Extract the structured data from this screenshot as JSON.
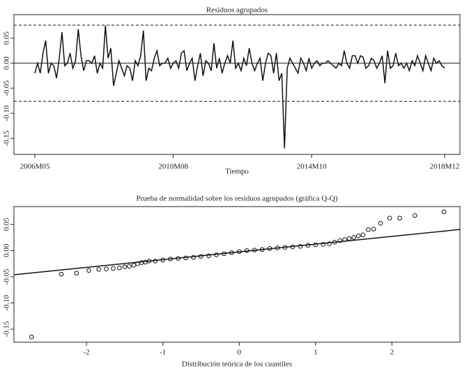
{
  "chart_data": [
    {
      "type": "line",
      "title": "Residuos agrupados",
      "x_label": "Tiempo",
      "categories": [
        "2006M05",
        null,
        null,
        null,
        null,
        null,
        null,
        null,
        null,
        null,
        null,
        null,
        null,
        null,
        null,
        null,
        null,
        null,
        null,
        null,
        null,
        null,
        null,
        null,
        null,
        null,
        null,
        null,
        null,
        null,
        null,
        null,
        null,
        null,
        null,
        null,
        null,
        null,
        null,
        null,
        null,
        null,
        null,
        null,
        null,
        null,
        null,
        null,
        null,
        null,
        null,
        "2010M08",
        null,
        null,
        null,
        null,
        null,
        null,
        null,
        null,
        null,
        null,
        null,
        null,
        null,
        null,
        null,
        null,
        null,
        null,
        null,
        null,
        null,
        null,
        null,
        null,
        null,
        null,
        null,
        null,
        null,
        null,
        null,
        null,
        null,
        null,
        null,
        null,
        null,
        null,
        null,
        null,
        null,
        null,
        null,
        null,
        null,
        null,
        null,
        null,
        null,
        null,
        "2014M10",
        null,
        null,
        null,
        null,
        null,
        null,
        null,
        null,
        null,
        null,
        null,
        null,
        null,
        null,
        null,
        null,
        null,
        null,
        null,
        null,
        null,
        null,
        null,
        null,
        null,
        null,
        null,
        null,
        null,
        null,
        null,
        null,
        null,
        null,
        null,
        null,
        null,
        null,
        null,
        null,
        null,
        null,
        null,
        null,
        null,
        null,
        null,
        null,
        "2018M12"
      ],
      "series": [
        {
          "color": "#111111",
          "values": [
            -0.02,
            0.0,
            -0.02,
            0.02,
            0.045,
            -0.02,
            0.0,
            -0.005,
            -0.03,
            0.01,
            0.062,
            -0.005,
            0.0,
            0.02,
            -0.01,
            0.005,
            0.068,
            0.015,
            -0.015,
            0.005,
            0.005,
            0.0,
            0.015,
            -0.02,
            0.0,
            -0.01,
            0.075,
            0.01,
            0.03,
            -0.045,
            -0.02,
            0.005,
            -0.01,
            -0.025,
            -0.005,
            -0.01,
            -0.035,
            0.005,
            -0.005,
            0.015,
            0.065,
            -0.035,
            -0.01,
            -0.015,
            0.01,
            0.025,
            -0.005,
            0.0,
            0.0,
            0.01,
            -0.01,
            0.0,
            0.005,
            -0.01,
            0.02,
            0.025,
            -0.015,
            0.0,
            0.01,
            -0.035,
            -0.005,
            0.02,
            -0.025,
            0.005,
            0.0,
            -0.015,
            0.04,
            -0.01,
            0.01,
            -0.02,
            0.0,
            0.015,
            0.0,
            0.045,
            -0.01,
            0.0,
            -0.015,
            0.01,
            -0.005,
            0.03,
            0.0,
            -0.015,
            0.0,
            0.01,
            -0.035,
            0.0,
            0.02,
            0.015,
            -0.02,
            0.02,
            -0.035,
            -0.02,
            -0.17,
            -0.01,
            0.01,
            0.0,
            -0.01,
            -0.02,
            0.01,
            0.0,
            -0.015,
            0.01,
            -0.01,
            0.0,
            0.005,
            -0.005,
            0.0,
            0.0,
            0.005,
            0.0,
            -0.005,
            -0.01,
            0.0,
            -0.005,
            0.025,
            0.0,
            -0.01,
            0.015,
            0.015,
            0.0,
            0.015,
            0.012,
            -0.01,
            -0.005,
            0.01,
            0.005,
            -0.01,
            0.0,
            0.015,
            -0.04,
            0.025,
            -0.01,
            -0.005,
            0.02,
            -0.005,
            0.0,
            -0.01,
            0.0,
            -0.015,
            0.005,
            -0.005,
            0.015,
            0.0,
            -0.015,
            0.015,
            0.0,
            -0.015,
            0.01,
            0.0,
            0.005,
            -0.005,
            -0.01
          ]
        }
      ],
      "hlines": [
        {
          "y": 0,
          "dash": false
        },
        {
          "y": 0.076,
          "dash": true
        },
        {
          "y": -0.076,
          "dash": true
        }
      ],
      "ylim": [
        -0.182,
        0.097
      ],
      "yticks": [
        {
          "value": -0.15,
          "label": "-0.15"
        },
        {
          "value": -0.1,
          "label": "-0.10"
        },
        {
          "value": -0.05,
          "label": "-0.05"
        },
        {
          "value": 0,
          "label": "0.00"
        },
        0.05
      ]
    },
    {
      "type": "scatter",
      "title": "Prueba de normalidad sobre los residuos agrupados (gráfica Q-Q)",
      "x_label": "Distribución teórica de los cuantiles",
      "x": [
        -2.72,
        -2.33,
        -2.13,
        -1.97,
        -1.84,
        -1.74,
        -1.65,
        -1.57,
        -1.5,
        -1.44,
        -1.38,
        -1.33,
        -1.28,
        -1.23,
        -1.18,
        -1.1,
        -1.0,
        -0.9,
        -0.8,
        -0.7,
        -0.6,
        -0.5,
        -0.4,
        -0.3,
        -0.2,
        -0.1,
        0.0,
        0.1,
        0.2,
        0.3,
        0.4,
        0.5,
        0.6,
        0.7,
        0.8,
        0.9,
        1.0,
        1.1,
        1.18,
        1.25,
        1.32,
        1.38,
        1.44,
        1.5,
        1.56,
        1.62,
        1.69,
        1.76,
        1.85,
        1.97,
        2.1,
        2.3,
        2.68
      ],
      "series": [
        {
          "color": "#111111",
          "values": [
            -0.165,
            -0.045,
            -0.043,
            -0.038,
            -0.036,
            -0.035,
            -0.034,
            -0.033,
            -0.031,
            -0.03,
            -0.028,
            -0.025,
            -0.023,
            -0.022,
            -0.02,
            -0.02,
            -0.018,
            -0.016,
            -0.015,
            -0.014,
            -0.013,
            -0.011,
            -0.01,
            -0.008,
            -0.006,
            -0.004,
            -0.002,
            0.0,
            0.001,
            0.002,
            0.004,
            0.005,
            0.006,
            0.007,
            0.008,
            0.01,
            0.011,
            0.012,
            0.013,
            0.016,
            0.019,
            0.021,
            0.023,
            0.025,
            0.028,
            0.03,
            0.04,
            0.041,
            0.052,
            0.062,
            0.062,
            0.067,
            0.074
          ]
        }
      ],
      "line": {
        "intercept": -0.0025,
        "slope": 0.0148
      },
      "xlim": [
        -2.95,
        2.89
      ],
      "xticks": [
        -2,
        -1,
        0,
        1,
        2
      ],
      "ylim": [
        -0.175,
        0.084
      ],
      "yticks": [
        {
          "value": -0.15,
          "label": "-0.15"
        },
        {
          "value": -0.1,
          "label": "-0.10"
        },
        {
          "value": -0.05,
          "label": "-0.05"
        },
        {
          "value": 0,
          "label": "0.00"
        },
        0.05
      ]
    }
  ]
}
